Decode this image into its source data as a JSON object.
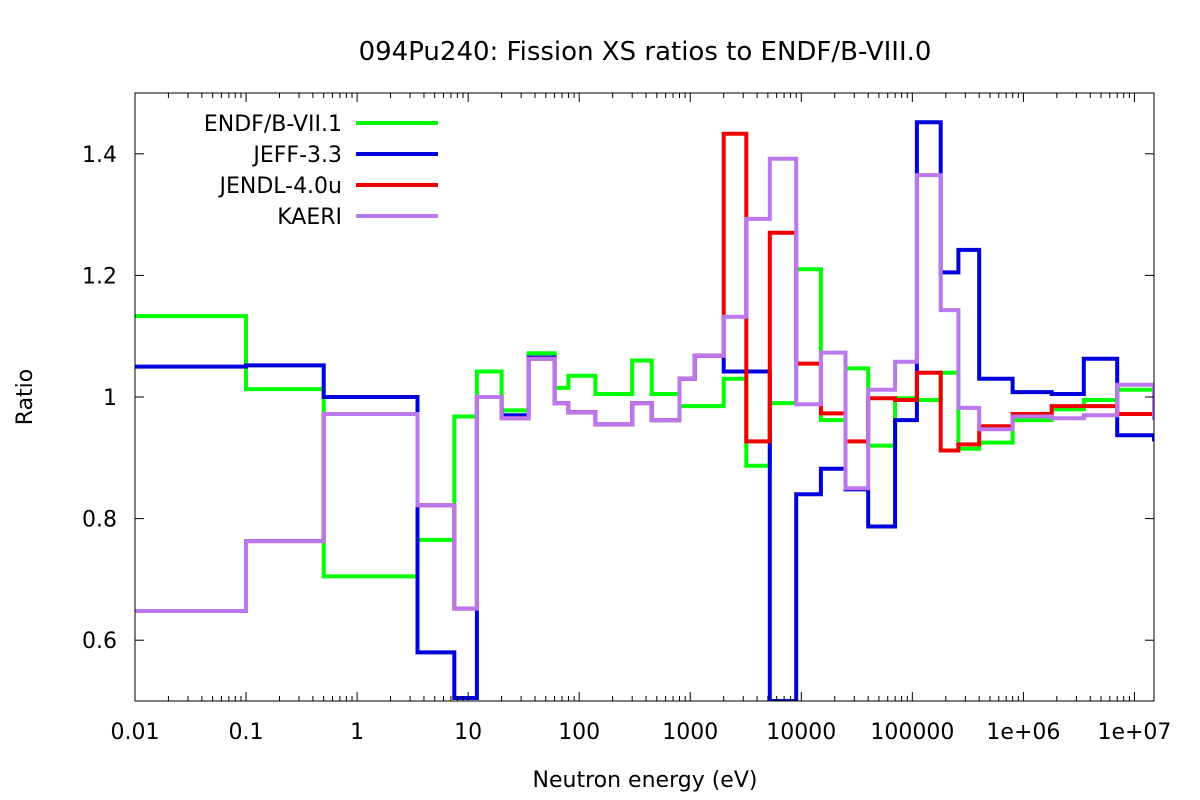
{
  "chart_data": {
    "type": "line",
    "title": "094Pu240: Fission XS ratios to ENDF/B-VIII.0",
    "xlabel": "Neutron energy (eV)",
    "ylabel": "Ratio",
    "xscale": "log",
    "xlim": [
      0.01,
      15000000
    ],
    "ylim": [
      0.5,
      1.5
    ],
    "xticks": [
      {
        "value": 0.01,
        "label": "0.01"
      },
      {
        "value": 0.1,
        "label": "0.1"
      },
      {
        "value": 1,
        "label": "1"
      },
      {
        "value": 10,
        "label": "10"
      },
      {
        "value": 100,
        "label": "100"
      },
      {
        "value": 1000,
        "label": "1000"
      },
      {
        "value": 10000,
        "label": "10000"
      },
      {
        "value": 100000,
        "label": "100000"
      },
      {
        "value": 1000000,
        "label": "1e+06"
      },
      {
        "value": 10000000,
        "label": "1e+07"
      }
    ],
    "yticks": [
      {
        "value": 0.6,
        "label": "0.6"
      },
      {
        "value": 0.8,
        "label": "0.8"
      },
      {
        "value": 1.0,
        "label": "1"
      },
      {
        "value": 1.2,
        "label": "1.2"
      },
      {
        "value": 1.4,
        "label": "1.4"
      }
    ],
    "grid": false,
    "legend_position": "top-left",
    "step": "histogram",
    "series": [
      {
        "name": "ENDF/B-VII.1",
        "color": "#00ff00",
        "x": [
          0.01,
          0.1,
          0.5,
          3.5,
          7.5,
          12,
          20,
          35,
          60,
          80,
          140,
          300,
          450,
          800,
          2000,
          3200,
          5200,
          9000,
          15000,
          25000,
          40000,
          70000,
          110000,
          180000,
          260000,
          400000,
          800000,
          1800000,
          3500000,
          7000000,
          15000000
        ],
        "y": [
          1.133,
          1.013,
          0.705,
          0.765,
          0.968,
          1.042,
          0.978,
          1.072,
          1.015,
          1.035,
          1.005,
          1.06,
          1.005,
          0.985,
          1.03,
          0.887,
          0.99,
          1.21,
          0.962,
          1.047,
          0.92,
          0.998,
          0.995,
          1.04,
          0.915,
          0.925,
          0.962,
          0.98,
          0.995,
          1.012,
          1.0
        ]
      },
      {
        "name": "JEFF-3.3",
        "color": "#0000dd",
        "x": [
          0.01,
          0.1,
          0.5,
          3.5,
          7.5,
          12,
          20,
          35,
          60,
          80,
          140,
          300,
          450,
          800,
          1100,
          2000,
          5200,
          9000,
          15000,
          25000,
          40000,
          70000,
          110000,
          180000,
          260000,
          400000,
          800000,
          1800000,
          3500000,
          7000000,
          15000000
        ],
        "y": [
          1.05,
          1.052,
          1.0,
          0.58,
          0.505,
          1.0,
          0.97,
          1.065,
          0.99,
          0.975,
          0.955,
          0.99,
          0.962,
          1.03,
          1.068,
          1.042,
          0.5,
          0.84,
          0.882,
          0.848,
          0.787,
          0.962,
          1.452,
          1.205,
          1.242,
          1.03,
          1.008,
          1.005,
          1.063,
          0.937,
          0.927
        ]
      },
      {
        "name": "JENDL-4.0u",
        "color": "#ee0000",
        "x": [
          0.01,
          0.1,
          0.5,
          3.5,
          7.5,
          12,
          20,
          35,
          60,
          80,
          140,
          300,
          450,
          800,
          1100,
          2000,
          3200,
          5200,
          9000,
          15000,
          25000,
          40000,
          70000,
          110000,
          180000,
          260000,
          400000,
          800000,
          1800000,
          3500000,
          7000000,
          15000000
        ],
        "y": [
          0.648,
          0.763,
          0.972,
          0.822,
          0.652,
          1.0,
          0.965,
          1.063,
          0.99,
          0.975,
          0.955,
          0.99,
          0.962,
          1.03,
          1.068,
          1.433,
          0.927,
          1.27,
          1.055,
          0.973,
          0.927,
          0.998,
          0.995,
          1.04,
          0.912,
          0.922,
          0.952,
          0.972,
          0.985,
          0.985,
          0.972,
          0.975
        ]
      },
      {
        "name": "KAERI",
        "color": "#bb77ee",
        "x": [
          0.01,
          0.1,
          0.5,
          3.5,
          7.5,
          12,
          20,
          35,
          60,
          80,
          140,
          300,
          450,
          800,
          1100,
          2000,
          3200,
          5200,
          9000,
          15000,
          25000,
          40000,
          70000,
          110000,
          180000,
          260000,
          400000,
          800000,
          1800000,
          3500000,
          7000000,
          15000000
        ],
        "y": [
          0.648,
          0.763,
          0.972,
          0.822,
          0.652,
          1.0,
          0.965,
          1.063,
          0.99,
          0.975,
          0.955,
          0.99,
          0.962,
          1.03,
          1.068,
          1.132,
          1.293,
          1.392,
          0.988,
          1.073,
          0.85,
          1.012,
          1.058,
          1.365,
          1.143,
          0.982,
          0.947,
          0.968,
          0.965,
          0.97,
          1.02,
          0.962
        ]
      }
    ]
  }
}
